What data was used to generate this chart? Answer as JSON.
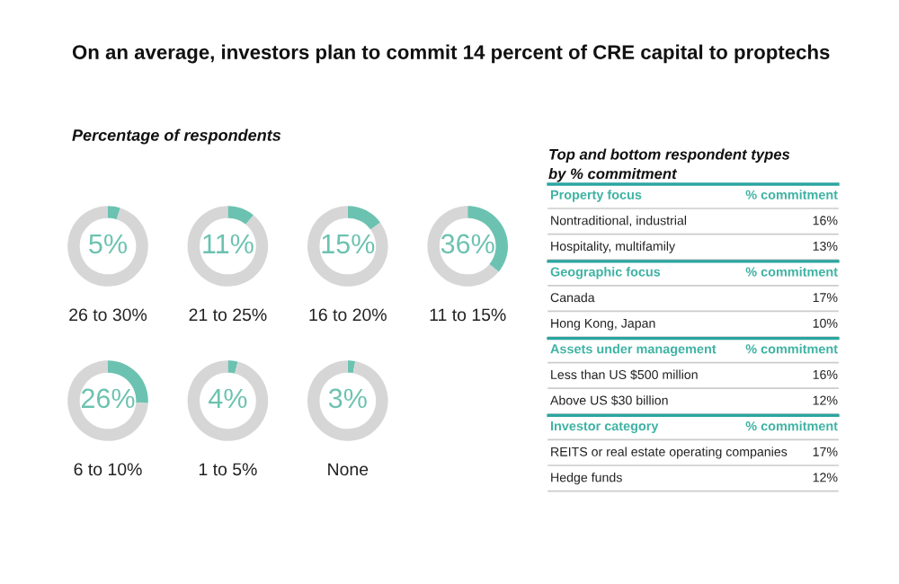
{
  "chart_data": [
    {
      "type": "donut",
      "title": "On an average, investors plan to commit 14 percent of CRE capital to proptechs",
      "subtitle": "Percentage of respondents",
      "xlabel": "26 to 30%",
      "categories": [
        null,
        null
      ],
      "values": [
        5,
        95
      ],
      "colors": [
        "#6cc2b0",
        "#d6d6d6"
      ],
      "value_labels": [
        "5%",
        null
      ]
    },
    {
      "type": "donut",
      "xlabel": "21 to 25%",
      "categories": [
        null,
        null
      ],
      "values": [
        11,
        89
      ],
      "colors": [
        "#6cc2b0",
        "#d6d6d6"
      ],
      "value_labels": [
        "11%",
        null
      ]
    },
    {
      "type": "donut",
      "xlabel": "16 to 20%",
      "categories": [
        null,
        null
      ],
      "values": [
        15,
        85
      ],
      "colors": [
        "#6cc2b0",
        "#d6d6d6"
      ],
      "value_labels": [
        "15%",
        null
      ]
    },
    {
      "type": "donut",
      "xlabel": "11 to 15%",
      "categories": [
        null,
        null
      ],
      "values": [
        36,
        64
      ],
      "colors": [
        "#6cc2b0",
        "#d6d6d6"
      ],
      "value_labels": [
        "36%",
        null
      ]
    },
    {
      "type": "donut",
      "xlabel": "6 to 10%",
      "categories": [
        null,
        null
      ],
      "values": [
        26,
        74
      ],
      "colors": [
        "#6cc2b0",
        "#d6d6d6"
      ],
      "value_labels": [
        "26%",
        null
      ]
    },
    {
      "type": "donut",
      "xlabel": "1 to 5%",
      "categories": [
        null,
        null
      ],
      "values": [
        4,
        96
      ],
      "colors": [
        "#6cc2b0",
        "#d6d6d6"
      ],
      "value_labels": [
        "4%",
        null
      ]
    },
    {
      "type": "donut",
      "xlabel": "None",
      "categories": [
        null,
        null
      ],
      "values": [
        3,
        97
      ],
      "colors": [
        "#6cc2b0",
        "#d6d6d6"
      ],
      "value_labels": [
        "3%",
        null
      ]
    },
    {
      "type": "other",
      "title": "Top and bottom respondent types\nby % commitment",
      "annotations": [
        "Property focus",
        "% commitment",
        "Nontraditional, industrial",
        "16%",
        "Hospitality, multifamily",
        "13%",
        "Geographic focus",
        "% commitment",
        "Canada",
        "17%",
        "Hong Kong, Japan",
        "10%",
        "Assets under management",
        "% commitment",
        "Less than US $500 million",
        "16%",
        "Above US $30 billion",
        "12%",
        "Investor category",
        "% commitment",
        "REITS or real estate operating companies",
        "17%",
        "Hedge funds",
        "12%"
      ]
    }
  ]
}
